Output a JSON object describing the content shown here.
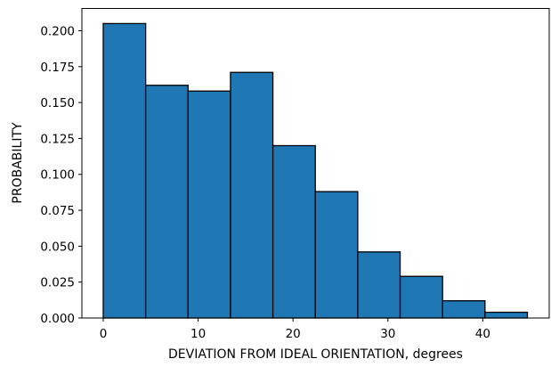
{
  "chart_data": {
    "type": "bar",
    "title": "",
    "xlabel": "DEVIATION FROM IDEAL ORIENTATION, degrees",
    "ylabel": "PROBABILITY",
    "xlim": [
      -2.25,
      47.0
    ],
    "ylim": [
      0,
      0.2155
    ],
    "x_ticks": [
      0,
      10,
      20,
      30,
      40
    ],
    "y_ticks": [
      0.0,
      0.025,
      0.05,
      0.075,
      0.1,
      0.125,
      0.15,
      0.175,
      0.2
    ],
    "y_tick_labels": [
      "0.000",
      "0.025",
      "0.050",
      "0.075",
      "0.100",
      "0.125",
      "0.150",
      "0.175",
      "0.200"
    ],
    "bin_edges": [
      0.0,
      4.47,
      8.94,
      13.41,
      17.88,
      22.35,
      26.82,
      31.29,
      35.76,
      40.23,
      44.7
    ],
    "values": [
      0.205,
      0.162,
      0.158,
      0.171,
      0.12,
      0.088,
      0.046,
      0.029,
      0.012,
      0.004
    ],
    "bar_color": "#1f77b4",
    "edge_color": "#000000",
    "grid": false,
    "legend": "none"
  }
}
